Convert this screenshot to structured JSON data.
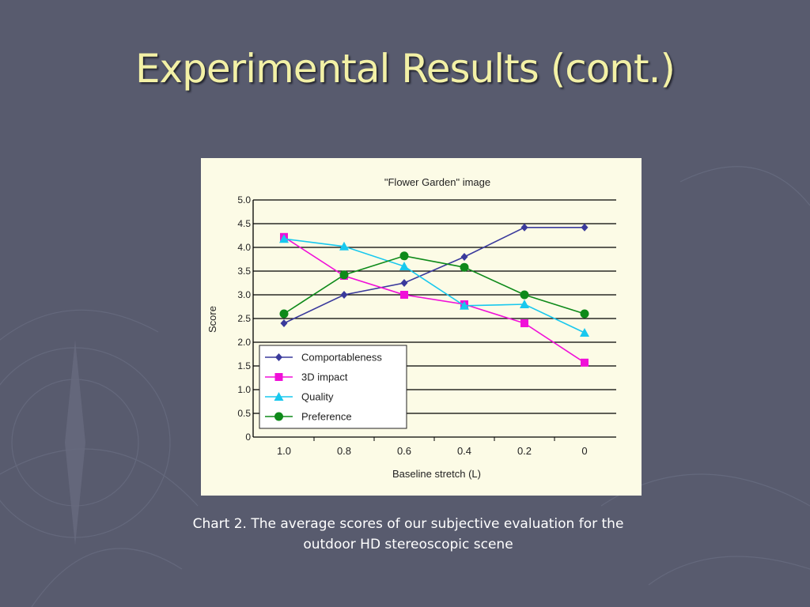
{
  "slide": {
    "title": "Experimental Results (cont.)",
    "caption_line1": "Chart 2. The average scores of our subjective evaluation for the",
    "caption_line2": "outdoor HD stereoscopic scene"
  },
  "colors": {
    "background": "#585b6e",
    "title": "#f3f1a6",
    "panel": "#fcfbe6"
  },
  "chart_data": {
    "type": "line",
    "title": "\"Flower Garden\" image",
    "xlabel": "Baseline stretch (L)",
    "ylabel": "Score",
    "categories": [
      "1.0",
      "0.8",
      "0.6",
      "0.4",
      "0.2",
      "0"
    ],
    "ylim": [
      0,
      5
    ],
    "yticks": [
      "0",
      "0.5",
      "1.0",
      "1.5",
      "2.0",
      "2.5",
      "3.0",
      "3.5",
      "4.0",
      "4.5",
      "5.0"
    ],
    "grid": true,
    "legend_position": "bottom-left",
    "series": [
      {
        "name": "Comportableness",
        "color": "#3a3a9c",
        "marker": "diamond",
        "values": [
          2.4,
          3.0,
          3.25,
          3.8,
          4.42,
          4.42
        ]
      },
      {
        "name": "3D impact",
        "color": "#f010d8",
        "marker": "square",
        "values": [
          4.22,
          3.4,
          3.0,
          2.8,
          2.4,
          1.57
        ]
      },
      {
        "name": "Quality",
        "color": "#18c8ee",
        "marker": "triangle",
        "values": [
          4.18,
          4.02,
          3.6,
          2.77,
          2.8,
          2.2
        ]
      },
      {
        "name": "Preference",
        "color": "#0e8a1a",
        "marker": "circle",
        "values": [
          2.6,
          3.42,
          3.82,
          3.58,
          3.0,
          2.6
        ]
      }
    ]
  }
}
